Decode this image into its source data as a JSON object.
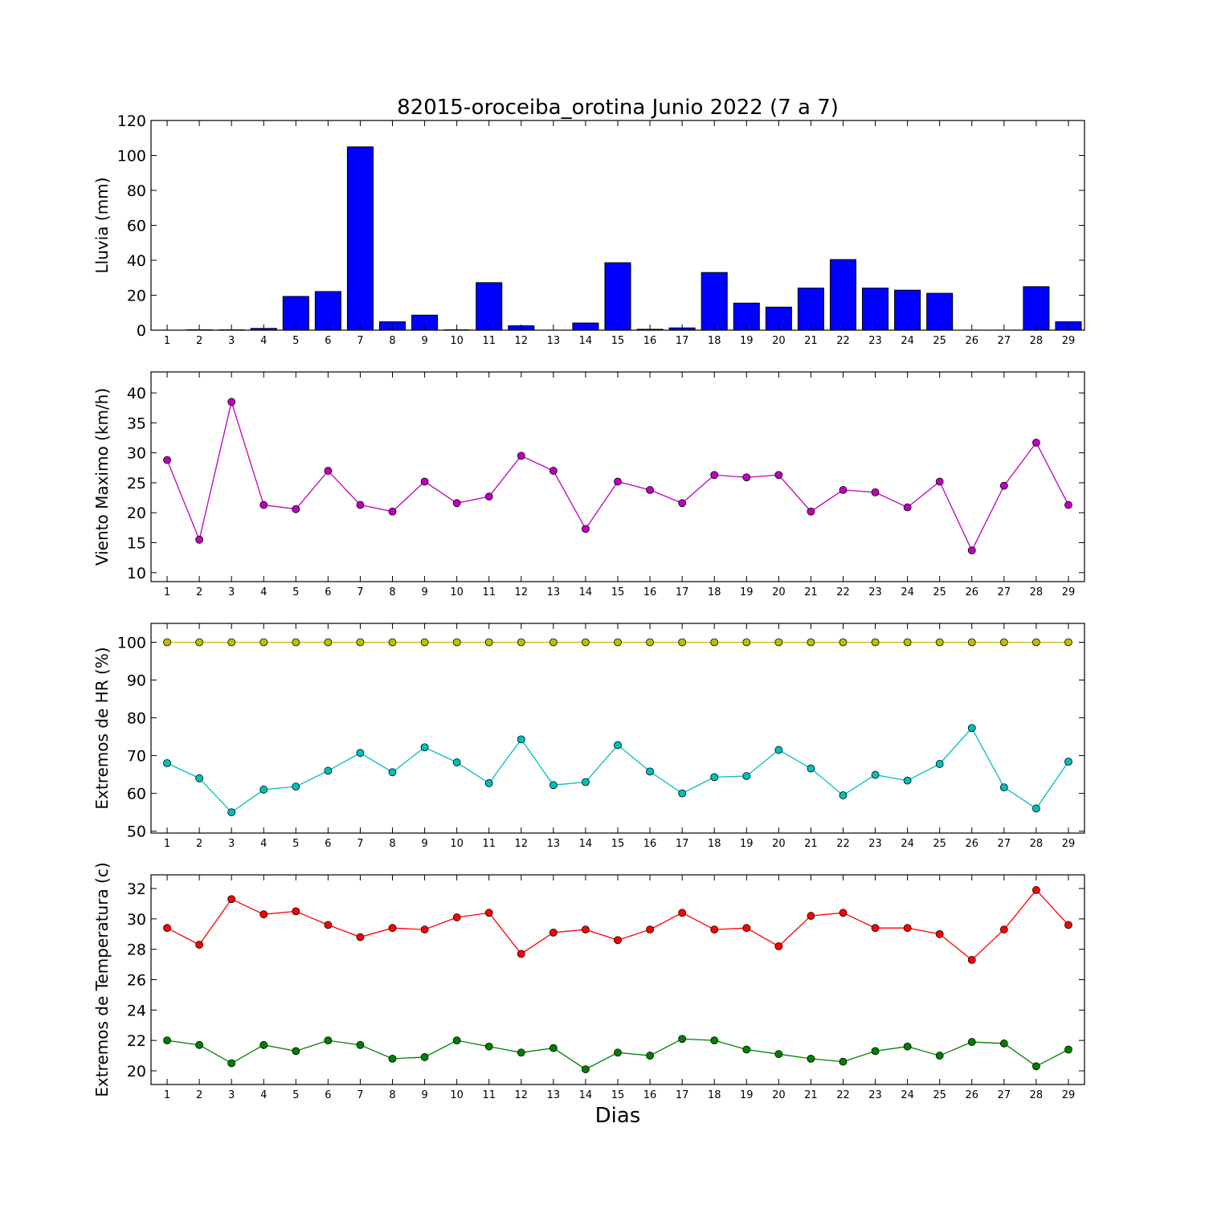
{
  "title": "82015-oroceiba_orotina Junio 2022  (7 a 7)",
  "xlabel": "Dias",
  "chart_data": [
    {
      "type": "bar",
      "ylabel": "Lluvia (mm)",
      "ylim": [
        0,
        120
      ],
      "yticks": [
        0,
        20,
        40,
        60,
        80,
        100,
        120
      ],
      "x": [
        1,
        2,
        3,
        4,
        5,
        6,
        7,
        8,
        9,
        10,
        11,
        12,
        13,
        14,
        15,
        16,
        17,
        18,
        19,
        20,
        21,
        22,
        23,
        24,
        25,
        26,
        27,
        28,
        29
      ],
      "series": [
        {
          "color": "#0000ff",
          "values": [
            0,
            0.2,
            0.2,
            1.0,
            19.3,
            22.1,
            104.9,
            4.8,
            8.6,
            0.2,
            27.2,
            2.5,
            0,
            4.1,
            38.6,
            0.5,
            1.3,
            33.0,
            15.5,
            13.2,
            24.1,
            40.4,
            24.1,
            22.9,
            21.1,
            0,
            0,
            24.9,
            4.8
          ]
        }
      ]
    },
    {
      "type": "line",
      "ylabel": "Viento Maximo (km/h)",
      "ylim": [
        8.5,
        43.5
      ],
      "yticks": [
        10,
        15,
        20,
        25,
        30,
        35,
        40
      ],
      "x": [
        1,
        2,
        3,
        4,
        5,
        6,
        7,
        8,
        9,
        10,
        11,
        12,
        13,
        14,
        15,
        16,
        17,
        18,
        19,
        20,
        21,
        22,
        23,
        24,
        25,
        26,
        27,
        28,
        29
      ],
      "series": [
        {
          "color": "#bf00bf",
          "values": [
            28.8,
            15.5,
            38.5,
            21.3,
            20.6,
            27.0,
            21.3,
            20.2,
            25.2,
            21.6,
            22.7,
            29.5,
            27.0,
            17.3,
            25.2,
            23.8,
            21.6,
            26.3,
            25.9,
            26.3,
            20.2,
            23.8,
            23.4,
            20.9,
            25.2,
            13.7,
            24.5,
            31.7,
            21.3
          ]
        }
      ]
    },
    {
      "type": "line",
      "ylabel": "Extremos de HR (%)",
      "ylim": [
        49.5,
        105
      ],
      "yticks": [
        50,
        60,
        70,
        80,
        90,
        100
      ],
      "x": [
        1,
        2,
        3,
        4,
        5,
        6,
        7,
        8,
        9,
        10,
        11,
        12,
        13,
        14,
        15,
        16,
        17,
        18,
        19,
        20,
        21,
        22,
        23,
        24,
        25,
        26,
        27,
        28,
        29
      ],
      "series": [
        {
          "color": "#bfbf00",
          "values": [
            100,
            100,
            100,
            100,
            100,
            100,
            100,
            100,
            100,
            100,
            100,
            100,
            100,
            100,
            100,
            100,
            100,
            100,
            100,
            100,
            100,
            100,
            100,
            100,
            100,
            100,
            100,
            100,
            100
          ]
        },
        {
          "color": "#00bfbf",
          "values": [
            68.0,
            64.0,
            55.0,
            61.0,
            61.8,
            66.0,
            70.7,
            65.6,
            72.2,
            68.2,
            62.7,
            74.3,
            62.2,
            63.0,
            72.8,
            65.8,
            60.0,
            64.3,
            64.6,
            71.5,
            66.6,
            59.5,
            64.9,
            63.4,
            67.8,
            77.3,
            61.6,
            56.0,
            68.4
          ]
        }
      ]
    },
    {
      "type": "line",
      "ylabel": "Extremos de Temperatura (c)",
      "ylim": [
        19.1,
        32.9
      ],
      "yticks": [
        20,
        22,
        24,
        26,
        28,
        30,
        32
      ],
      "x": [
        1,
        2,
        3,
        4,
        5,
        6,
        7,
        8,
        9,
        10,
        11,
        12,
        13,
        14,
        15,
        16,
        17,
        18,
        19,
        20,
        21,
        22,
        23,
        24,
        25,
        26,
        27,
        28,
        29
      ],
      "series": [
        {
          "color": "#ff0000",
          "values": [
            29.4,
            28.3,
            31.3,
            30.3,
            30.5,
            29.6,
            28.8,
            29.4,
            29.3,
            30.1,
            30.4,
            27.7,
            29.1,
            29.3,
            28.6,
            29.3,
            30.4,
            29.3,
            29.4,
            28.2,
            30.2,
            30.4,
            29.4,
            29.4,
            29.0,
            27.3,
            29.3,
            31.9,
            29.6
          ]
        },
        {
          "color": "#008000",
          "values": [
            22.0,
            21.7,
            20.5,
            21.7,
            21.3,
            22.0,
            21.7,
            20.8,
            20.9,
            22.0,
            21.6,
            21.2,
            21.5,
            20.1,
            21.2,
            21.0,
            22.1,
            22.0,
            21.4,
            21.1,
            20.8,
            20.6,
            21.3,
            21.6,
            21.0,
            21.9,
            21.8,
            20.3,
            21.4
          ]
        }
      ]
    }
  ]
}
